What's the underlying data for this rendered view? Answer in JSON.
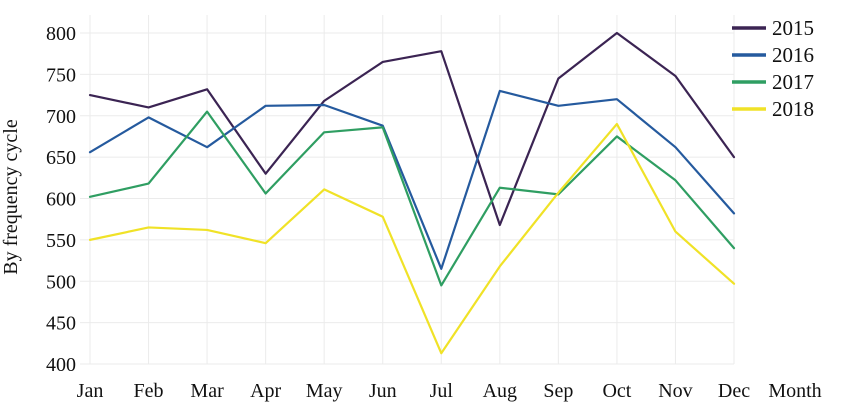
{
  "chart_data": {
    "type": "line",
    "title": "",
    "xlabel": "Month",
    "ylabel": "By frequency cycle",
    "categories": [
      "Jan",
      "Feb",
      "Mar",
      "Apr",
      "May",
      "Jun",
      "Jul",
      "Aug",
      "Sep",
      "Oct",
      "Nov",
      "Dec"
    ],
    "ylim": [
      400,
      800
    ],
    "y_ticks": [
      400,
      450,
      500,
      550,
      600,
      650,
      700,
      750,
      800
    ],
    "grid": true,
    "grid_color": "#ebebeb",
    "text_color": "#111111",
    "legend_position": "top-right",
    "series": [
      {
        "name": "2015",
        "color": "#3b2453",
        "values": [
          725,
          710,
          732,
          630,
          718,
          765,
          778,
          568,
          745,
          800,
          748,
          650
        ]
      },
      {
        "name": "2016",
        "color": "#255a9e",
        "values": [
          656,
          698,
          662,
          712,
          713,
          688,
          515,
          730,
          712,
          720,
          662,
          582
        ]
      },
      {
        "name": "2017",
        "color": "#2f9e62",
        "values": [
          602,
          618,
          705,
          606,
          680,
          686,
          495,
          613,
          605,
          675,
          622,
          540
        ]
      },
      {
        "name": "2018",
        "color": "#f0e227",
        "values": [
          550,
          565,
          562,
          546,
          611,
          578,
          413,
          518,
          607,
          690,
          560,
          497
        ]
      }
    ]
  }
}
